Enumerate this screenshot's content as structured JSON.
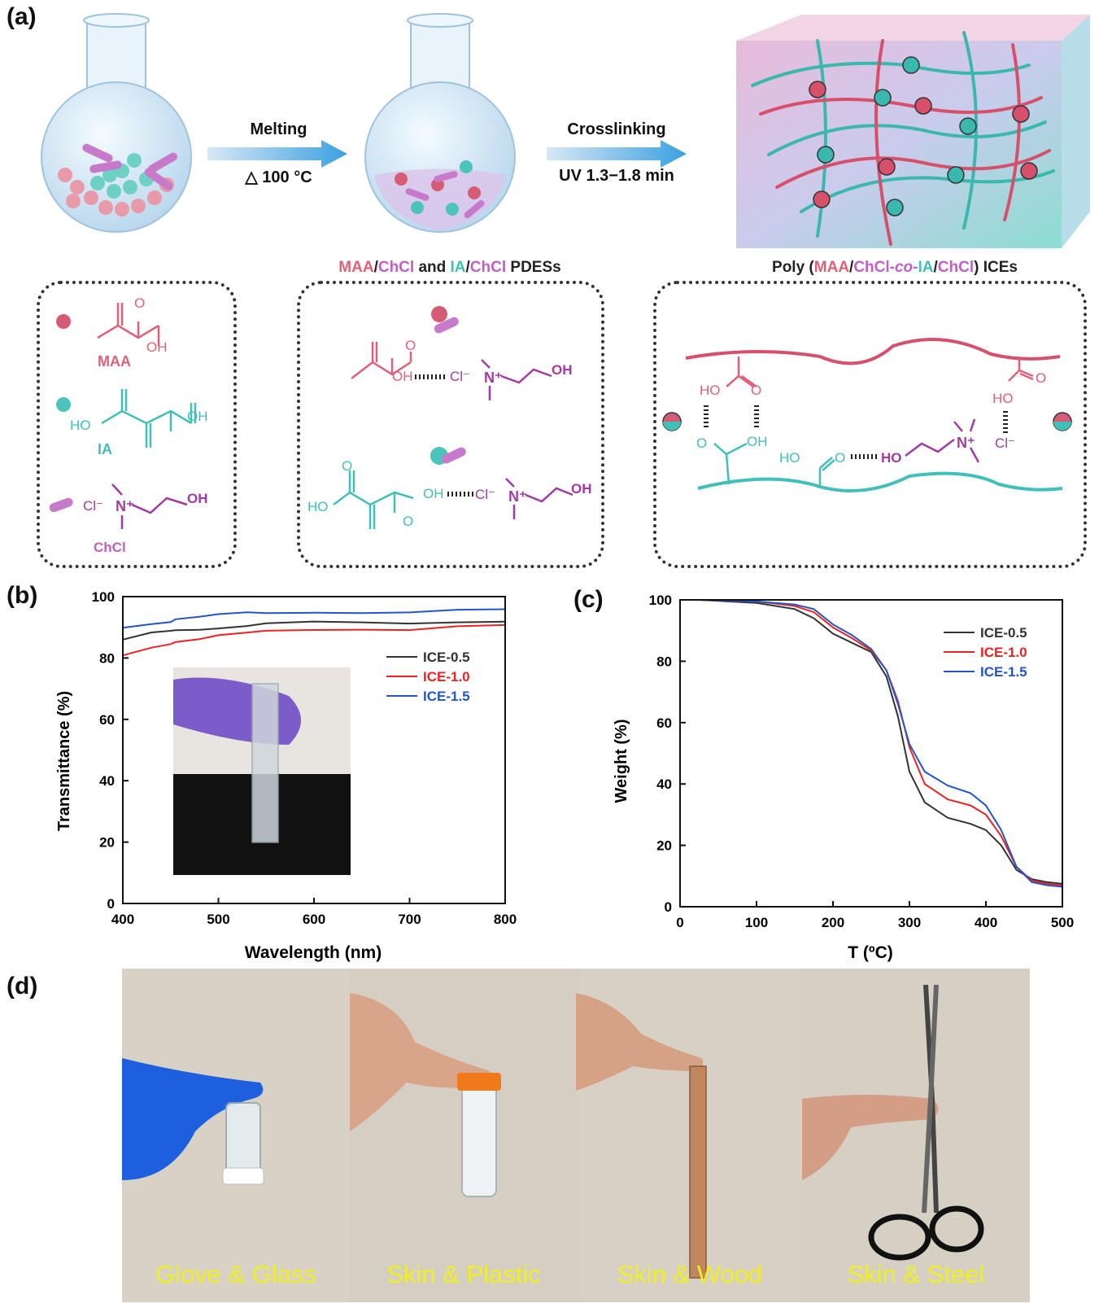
{
  "panel_a": {
    "label": "(a)",
    "arrow1": {
      "top": "Melting",
      "bottom": "△ 100 °C"
    },
    "arrow2": {
      "top": "Crosslinking",
      "bottom": "UV 1.3−1.8 min"
    },
    "caption_middle": {
      "parts": [
        {
          "text": "MAA",
          "color": "#e0607a"
        },
        {
          "text": "/",
          "color": "#222222"
        },
        {
          "text": "ChCl",
          "color": "#c060c0"
        },
        {
          "text": " and ",
          "color": "#222222"
        },
        {
          "text": "IA",
          "color": "#40c0b8"
        },
        {
          "text": "/",
          "color": "#222222"
        },
        {
          "text": "ChCl",
          "color": "#c060c0"
        },
        {
          "text": " PDESs",
          "color": "#222222"
        }
      ]
    },
    "caption_right": {
      "parts": [
        {
          "text": "Poly (",
          "color": "#222222"
        },
        {
          "text": "MAA",
          "color": "#e0607a"
        },
        {
          "text": "/",
          "color": "#222222"
        },
        {
          "text": "ChCl-",
          "color": "#c060c0"
        },
        {
          "text": "co",
          "color": "#c060c0",
          "italic": true
        },
        {
          "text": "-",
          "color": "#c060c0"
        },
        {
          "text": "IA",
          "color": "#40c0b8"
        },
        {
          "text": "/",
          "color": "#222222"
        },
        {
          "text": "ChCl",
          "color": "#c060c0"
        },
        {
          "text": ") ICEs",
          "color": "#222222"
        }
      ]
    },
    "box1": {
      "maa": "MAA",
      "ia": "IA",
      "chcl": "ChCl",
      "oh": "OH",
      "ho": "HO",
      "cl": "Cl⁻",
      "n": "N⁺"
    },
    "box2": {
      "oh": "OH",
      "ho": "HO",
      "cl": "Cl⁻",
      "n": "N⁺"
    },
    "box3": {
      "ho": "HO",
      "oh": "OH",
      "o": "O",
      "cl": "Cl⁻",
      "n": "N⁺"
    }
  },
  "panel_b": {
    "label": "(b)",
    "ylabel": "Transmittance (%)",
    "xlabel": "Wavelength (nm)",
    "xticks": [
      "400",
      "500",
      "600",
      "700",
      "800"
    ],
    "yticks": [
      "0",
      "20",
      "40",
      "60",
      "80",
      "100"
    ]
  },
  "panel_c": {
    "label": "(c)",
    "ylabel": "Weight (%)",
    "xlabel": "T (ºC)",
    "xticks": [
      "0",
      "100",
      "200",
      "300",
      "400",
      "500"
    ],
    "yticks": [
      "0",
      "20",
      "40",
      "60",
      "80",
      "100"
    ]
  },
  "panel_d": {
    "label": "(d)",
    "photos": [
      "Glove & Glass",
      "Skin & Plastic",
      "Skin & Wood",
      "Skin & Steel"
    ]
  },
  "colors": {
    "ice05": "#333333",
    "ice10": "#ee2222",
    "ice15": "#2255cc",
    "maa": "#e0607a",
    "ia": "#40c0b8",
    "chcl": "#c060c0"
  },
  "chart_data": [
    {
      "type": "line",
      "xlabel": "Wavelength (nm)",
      "ylabel": "Transmittance (%)",
      "xlim": [
        400,
        800
      ],
      "ylim": [
        0,
        100
      ],
      "legend": "right",
      "x": [
        400,
        430,
        450,
        455,
        480,
        500,
        530,
        550,
        600,
        650,
        700,
        750,
        800
      ],
      "series": [
        {
          "name": "ICE-0.5",
          "color": "#333333",
          "values": [
            86,
            88,
            88.5,
            89,
            89.5,
            90,
            90.5,
            91,
            91.5,
            91.5,
            91.5,
            92,
            92
          ]
        },
        {
          "name": "ICE-1.0",
          "color": "#ee2222",
          "values": [
            80.5,
            83,
            84.5,
            85.5,
            86.5,
            87.5,
            88,
            88.5,
            89,
            89.5,
            89.5,
            90.5,
            90.5
          ]
        },
        {
          "name": "ICE-1.5",
          "color": "#2255cc",
          "values": [
            89.5,
            91,
            92,
            93,
            93.5,
            94,
            94.5,
            94.5,
            95,
            95,
            95,
            95.5,
            95.5
          ]
        }
      ]
    },
    {
      "type": "line",
      "xlabel": "T (ºC)",
      "ylabel": "Weight (%)",
      "xlim": [
        0,
        500
      ],
      "ylim": [
        0,
        100
      ],
      "legend": "top-right",
      "x": [
        25,
        100,
        150,
        175,
        200,
        225,
        250,
        270,
        285,
        300,
        320,
        350,
        380,
        400,
        420,
        440,
        460,
        480,
        500
      ],
      "series": [
        {
          "name": "ICE-0.5",
          "color": "#333333",
          "values": [
            100,
            99,
            97,
            94,
            89,
            86,
            83,
            75,
            62,
            44,
            34,
            29,
            27,
            25,
            20,
            12,
            9,
            8,
            7.5
          ]
        },
        {
          "name": "ICE-1.0",
          "color": "#ee2222",
          "values": [
            100,
            99.5,
            98,
            96,
            91,
            87.5,
            83.5,
            77,
            67,
            52,
            40,
            35,
            33,
            30,
            23,
            13,
            8.5,
            7.5,
            7
          ]
        },
        {
          "name": "ICE-1.5",
          "color": "#2255cc",
          "values": [
            100,
            99.5,
            98.5,
            97,
            92,
            88.5,
            84,
            77,
            66,
            53,
            44,
            39.5,
            37,
            33,
            25,
            13,
            8,
            7,
            6.5
          ]
        }
      ]
    }
  ]
}
